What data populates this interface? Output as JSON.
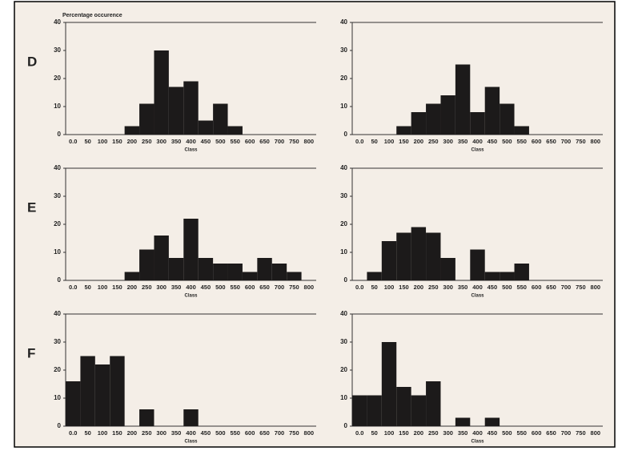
{
  "chart_data": [
    {
      "type": "bar",
      "panel_label": "D",
      "title": "Percentage occurence",
      "xlabel": "Class",
      "categories": [
        "0.0",
        "50",
        "100",
        "150",
        "200",
        "250",
        "300",
        "350",
        "400",
        "450",
        "500",
        "550",
        "600",
        "650",
        "700",
        "750",
        "800"
      ],
      "values": [
        0,
        0,
        0,
        0,
        3,
        11,
        30,
        17,
        19,
        5,
        11,
        3,
        0,
        0,
        0,
        0,
        0
      ],
      "ylim": [
        0,
        40
      ],
      "yticks": [
        0,
        10,
        20,
        30,
        40
      ],
      "color": "#1c1a1a"
    },
    {
      "type": "bar",
      "xlabel": "Class",
      "categories": [
        "0.0",
        "50",
        "100",
        "150",
        "200",
        "250",
        "300",
        "350",
        "400",
        "450",
        "500",
        "550",
        "600",
        "650",
        "700",
        "750",
        "800"
      ],
      "values": [
        0,
        0,
        0,
        3,
        8,
        11,
        14,
        25,
        8,
        17,
        11,
        3,
        0,
        0,
        0,
        0,
        0
      ],
      "ylim": [
        0,
        40
      ],
      "yticks": [
        0,
        10,
        20,
        30,
        40
      ],
      "color": "#1c1a1a"
    },
    {
      "type": "bar",
      "panel_label": "E",
      "xlabel": "Class",
      "categories": [
        "0.0",
        "50",
        "100",
        "150",
        "200",
        "250",
        "300",
        "350",
        "400",
        "450",
        "500",
        "550",
        "600",
        "650",
        "700",
        "750",
        "800"
      ],
      "values": [
        0,
        0,
        0,
        0,
        3,
        11,
        16,
        8,
        22,
        8,
        6,
        6,
        3,
        8,
        6,
        3,
        0
      ],
      "ylim": [
        0,
        40
      ],
      "yticks": [
        0,
        10,
        20,
        30,
        40
      ],
      "color": "#1c1a1a"
    },
    {
      "type": "bar",
      "xlabel": "Class",
      "categories": [
        "0.0",
        "50",
        "100",
        "150",
        "200",
        "250",
        "300",
        "350",
        "400",
        "450",
        "500",
        "550",
        "600",
        "650",
        "700",
        "750",
        "800"
      ],
      "values": [
        0,
        3,
        14,
        17,
        19,
        17,
        8,
        0,
        11,
        3,
        3,
        6,
        0,
        0,
        0,
        0,
        0
      ],
      "ylim": [
        0,
        40
      ],
      "yticks": [
        0,
        10,
        20,
        30,
        40
      ],
      "color": "#1c1a1a"
    },
    {
      "type": "bar",
      "panel_label": "F",
      "xlabel": "Class",
      "categories": [
        "0.0",
        "50",
        "100",
        "150",
        "200",
        "250",
        "300",
        "350",
        "400",
        "450",
        "500",
        "550",
        "600",
        "650",
        "700",
        "750",
        "800"
      ],
      "values": [
        16,
        25,
        22,
        25,
        0,
        6,
        0,
        0,
        6,
        0,
        0,
        0,
        0,
        0,
        0,
        0,
        0
      ],
      "ylim": [
        0,
        40
      ],
      "yticks": [
        0,
        10,
        20,
        30,
        40
      ],
      "color": "#1c1a1a"
    },
    {
      "type": "bar",
      "xlabel": "Class",
      "categories": [
        "0.0",
        "50",
        "100",
        "150",
        "200",
        "250",
        "300",
        "350",
        "400",
        "450",
        "500",
        "550",
        "600",
        "650",
        "700",
        "750",
        "800"
      ],
      "values": [
        11,
        11,
        30,
        14,
        11,
        16,
        0,
        3,
        0,
        3,
        0,
        0,
        0,
        0,
        0,
        0,
        0
      ],
      "ylim": [
        0,
        40
      ],
      "yticks": [
        0,
        10,
        20,
        30,
        40
      ],
      "color": "#1c1a1a"
    }
  ]
}
